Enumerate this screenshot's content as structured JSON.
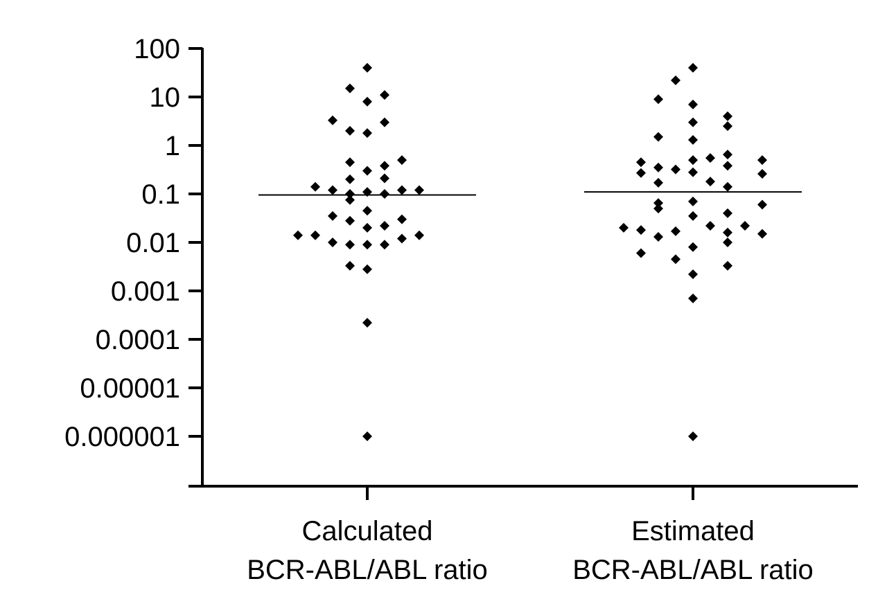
{
  "chart_data": {
    "type": "scatter",
    "subtype": "dot-plot",
    "title": "",
    "xlabel": "",
    "ylabel": "",
    "y_scale": "log10",
    "ylim": [
      1e-07,
      100
    ],
    "y_ticks": [
      {
        "value": 100,
        "label": "100"
      },
      {
        "value": 10,
        "label": "10"
      },
      {
        "value": 1,
        "label": "1"
      },
      {
        "value": 0.1,
        "label": "0.1"
      },
      {
        "value": 0.01,
        "label": "0.01"
      },
      {
        "value": 0.001,
        "label": "0.001"
      },
      {
        "value": 0.0001,
        "label": "0.0001"
      },
      {
        "value": 1e-05,
        "label": "0.00001"
      },
      {
        "value": 1e-06,
        "label": "0.000001"
      }
    ],
    "categories": [
      {
        "line1": "Calculated",
        "line2": "BCR-ABL/ABL ratio"
      },
      {
        "line1": "Estimated",
        "line2": "BCR-ABL/ABL ratio"
      }
    ],
    "series": [
      {
        "name": "Calculated BCR-ABL/ABL ratio",
        "median": 0.095,
        "points": [
          {
            "offset": 0,
            "value": 40
          },
          {
            "offset": -0.2,
            "value": 15
          },
          {
            "offset": 0.2,
            "value": 11
          },
          {
            "offset": 0,
            "value": 8
          },
          {
            "offset": -0.4,
            "value": 3.3
          },
          {
            "offset": 0.2,
            "value": 3
          },
          {
            "offset": -0.2,
            "value": 2
          },
          {
            "offset": 0,
            "value": 1.8
          },
          {
            "offset": -0.2,
            "value": 0.45
          },
          {
            "offset": 0.4,
            "value": 0.5
          },
          {
            "offset": 0.2,
            "value": 0.38
          },
          {
            "offset": 0,
            "value": 0.3
          },
          {
            "offset": -0.2,
            "value": 0.2
          },
          {
            "offset": 0.2,
            "value": 0.21
          },
          {
            "offset": -0.6,
            "value": 0.14
          },
          {
            "offset": -0.4,
            "value": 0.12
          },
          {
            "offset": 0.4,
            "value": 0.12
          },
          {
            "offset": 0.6,
            "value": 0.12
          },
          {
            "offset": -0.2,
            "value": 0.1
          },
          {
            "offset": 0,
            "value": 0.11
          },
          {
            "offset": 0.2,
            "value": 0.1
          },
          {
            "offset": -0.2,
            "value": 0.075
          },
          {
            "offset": 0,
            "value": 0.045
          },
          {
            "offset": -0.4,
            "value": 0.035
          },
          {
            "offset": -0.2,
            "value": 0.028
          },
          {
            "offset": 0.4,
            "value": 0.03
          },
          {
            "offset": 0,
            "value": 0.02
          },
          {
            "offset": 0.2,
            "value": 0.022
          },
          {
            "offset": -0.8,
            "value": 0.014
          },
          {
            "offset": -0.6,
            "value": 0.014
          },
          {
            "offset": 0.4,
            "value": 0.012
          },
          {
            "offset": 0.6,
            "value": 0.014
          },
          {
            "offset": -0.4,
            "value": 0.01
          },
          {
            "offset": -0.2,
            "value": 0.009
          },
          {
            "offset": 0,
            "value": 0.009
          },
          {
            "offset": 0.2,
            "value": 0.009
          },
          {
            "offset": -0.2,
            "value": 0.0033
          },
          {
            "offset": 0,
            "value": 0.0028
          },
          {
            "offset": 0,
            "value": 0.00022
          },
          {
            "offset": 0,
            "value": 1e-06
          }
        ]
      },
      {
        "name": "Estimated BCR-ABL/ABL ratio",
        "median": 0.11,
        "points": [
          {
            "offset": 0,
            "value": 40
          },
          {
            "offset": -0.2,
            "value": 22
          },
          {
            "offset": -0.4,
            "value": 9
          },
          {
            "offset": 0,
            "value": 7
          },
          {
            "offset": 0.4,
            "value": 4
          },
          {
            "offset": 0,
            "value": 3
          },
          {
            "offset": 0.4,
            "value": 2.5
          },
          {
            "offset": -0.4,
            "value": 1.5
          },
          {
            "offset": 0,
            "value": 1.3
          },
          {
            "offset": 0.4,
            "value": 0.65
          },
          {
            "offset": 0.2,
            "value": 0.55
          },
          {
            "offset": 0.8,
            "value": 0.5
          },
          {
            "offset": 0,
            "value": 0.5
          },
          {
            "offset": -0.6,
            "value": 0.45
          },
          {
            "offset": -0.4,
            "value": 0.35
          },
          {
            "offset": 0.4,
            "value": 0.38
          },
          {
            "offset": -0.2,
            "value": 0.32
          },
          {
            "offset": -0.6,
            "value": 0.27
          },
          {
            "offset": 0,
            "value": 0.28
          },
          {
            "offset": 0.8,
            "value": 0.26
          },
          {
            "offset": 0.2,
            "value": 0.18
          },
          {
            "offset": -0.4,
            "value": 0.17
          },
          {
            "offset": 0.4,
            "value": 0.14
          },
          {
            "offset": -0.4,
            "value": 0.065
          },
          {
            "offset": 0,
            "value": 0.07
          },
          {
            "offset": 0.8,
            "value": 0.06
          },
          {
            "offset": -0.4,
            "value": 0.05
          },
          {
            "offset": 0.4,
            "value": 0.04
          },
          {
            "offset": 0,
            "value": 0.035
          },
          {
            "offset": -0.8,
            "value": 0.02
          },
          {
            "offset": 0.2,
            "value": 0.022
          },
          {
            "offset": 0.6,
            "value": 0.022
          },
          {
            "offset": -0.6,
            "value": 0.018
          },
          {
            "offset": -0.2,
            "value": 0.017
          },
          {
            "offset": 0.4,
            "value": 0.016
          },
          {
            "offset": 0.8,
            "value": 0.015
          },
          {
            "offset": -0.4,
            "value": 0.013
          },
          {
            "offset": 0,
            "value": 0.008
          },
          {
            "offset": 0.4,
            "value": 0.01
          },
          {
            "offset": -0.6,
            "value": 0.006
          },
          {
            "offset": -0.2,
            "value": 0.0045
          },
          {
            "offset": 0.4,
            "value": 0.0033
          },
          {
            "offset": 0,
            "value": 0.0022
          },
          {
            "offset": 0,
            "value": 0.0007
          },
          {
            "offset": 0,
            "value": 1e-06
          }
        ]
      }
    ]
  }
}
